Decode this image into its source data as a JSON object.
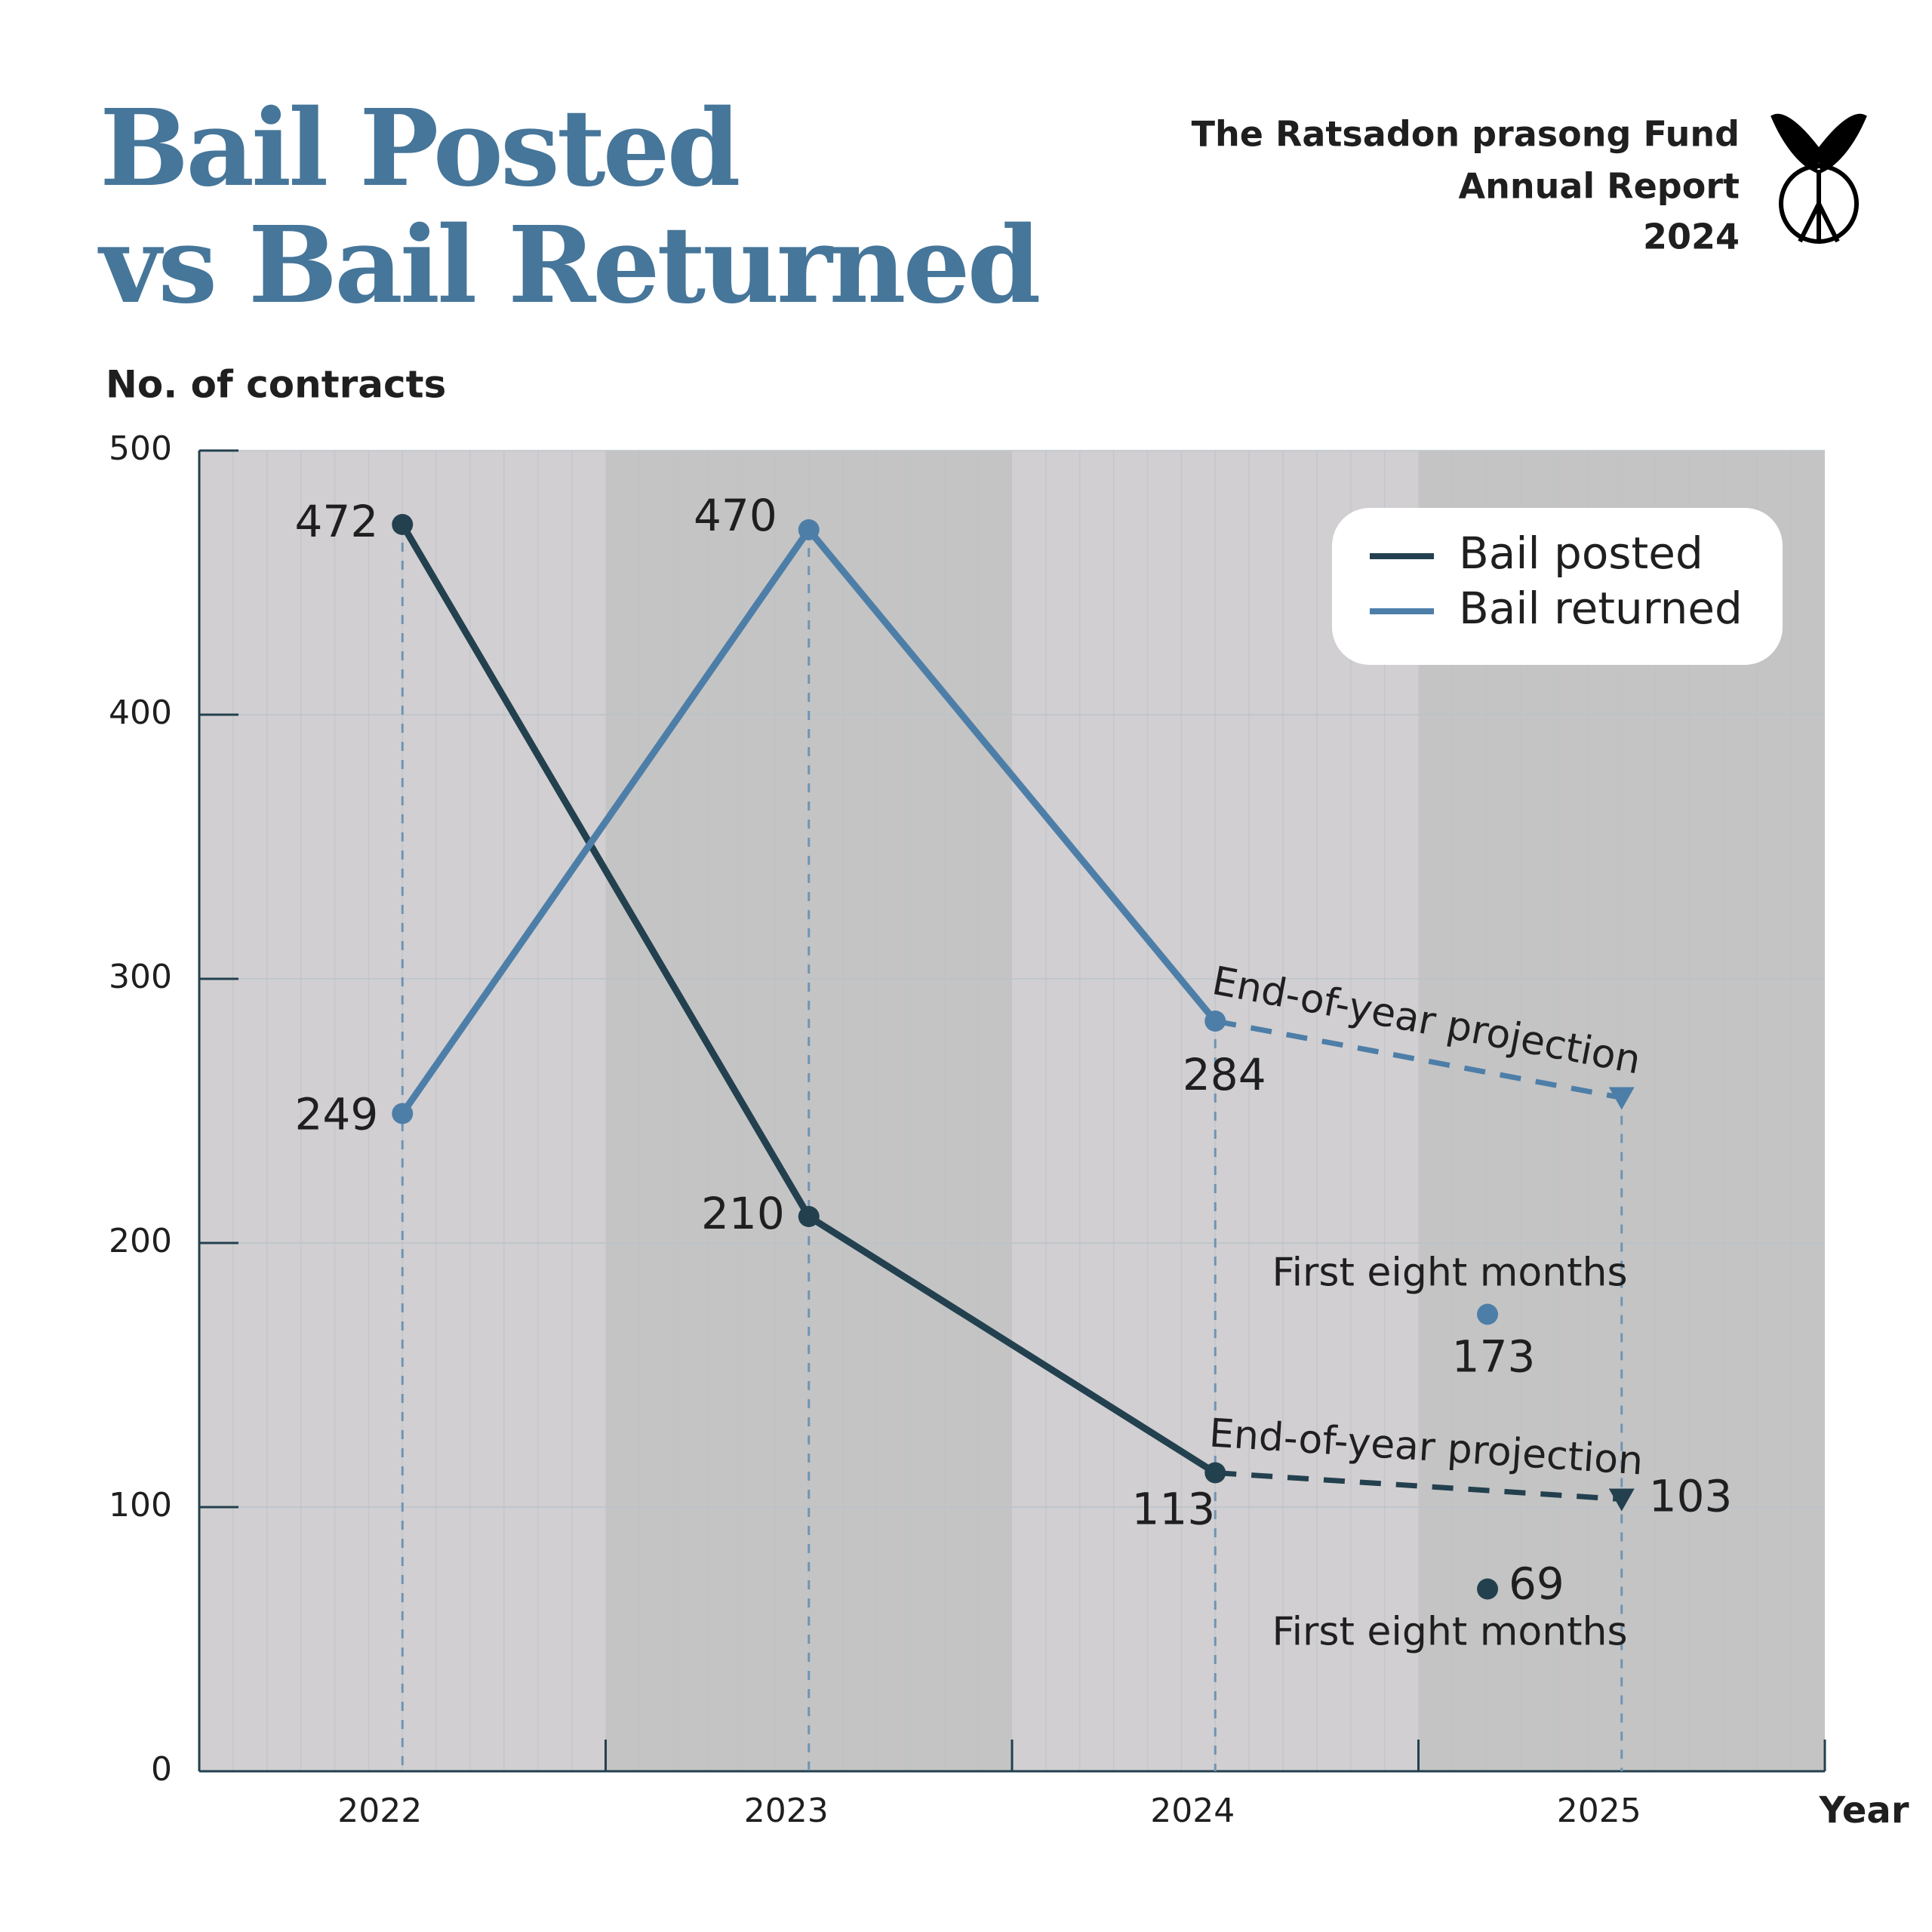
{
  "chart_data": {
    "type": "line",
    "title": [
      "Bail Posted",
      "vs Bail Returned"
    ],
    "source": [
      "The Ratsadon prasong Fund",
      "Annual Report",
      "2024"
    ],
    "y_label": "No. of contracts",
    "x_label": "Year",
    "x": [
      2022,
      2023,
      2024,
      2025
    ],
    "xlim": [
      2021.5,
      2025.5
    ],
    "xticks": [
      2022,
      2023,
      2024,
      2025
    ],
    "ylim": [
      0,
      500
    ],
    "yticks": [
      0,
      100,
      200,
      300,
      400,
      500
    ],
    "grid": true,
    "legend": "top-right",
    "series": [
      {
        "name": "Bail posted",
        "color": "#23404f",
        "values": [
          472,
          210,
          113,
          103
        ],
        "projection_label": "End-of-year projection",
        "partial": {
          "x": 2024.67,
          "value": 69,
          "label": "First eight months"
        }
      },
      {
        "name": "Bail returned",
        "color": "#4d7ea8",
        "values": [
          249,
          470,
          284,
          255
        ],
        "value_labels": [
          "249",
          "470",
          "284",
          null
        ],
        "projection_label": "End-of-year projection",
        "partial": {
          "x": 2024.67,
          "value": 173,
          "label": "First eight months"
        }
      }
    ]
  }
}
